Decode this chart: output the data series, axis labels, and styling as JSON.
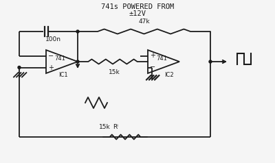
{
  "title_line1": "741s POWERED FROM",
  "title_line2": "±12V",
  "label_100n": "100n",
  "label_15k_mid": "15k",
  "label_47k": "47k",
  "label_ic1": "IC1",
  "label_ic2": "IC2",
  "label_741_1": "741",
  "label_741_2": "741",
  "label_15k_bot": "15k",
  "label_rt": "Rⁱ",
  "bg_color": "#f5f5f5",
  "line_color": "#1a1a1a",
  "lw": 1.3
}
